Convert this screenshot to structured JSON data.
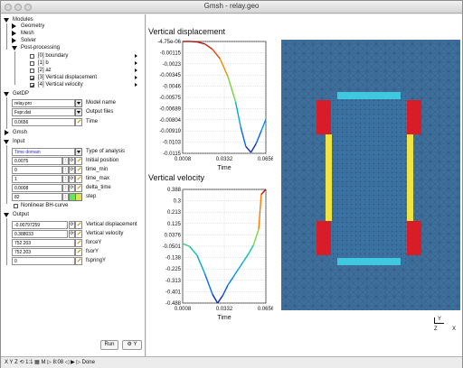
{
  "window": {
    "title": "Gmsh - relay.geo"
  },
  "tree": {
    "modules": "Modules",
    "geometry": "Geometry",
    "mesh": "Mesh",
    "solver": "Solver",
    "post_processing": "Post-processing",
    "views": [
      {
        "label": "[0] boundary",
        "checked": false
      },
      {
        "label": "[1] b",
        "checked": false
      },
      {
        "label": "[2] az",
        "checked": false
      },
      {
        "label": "[3] Vertical displacement",
        "checked": true
      },
      {
        "label": "[4] Vertical velocity",
        "checked": true
      }
    ],
    "getdp": "GetDP",
    "gmsh": "Gmsh",
    "input": "Input",
    "output": "Output",
    "nonlinear": "Nonlinear BH-curve"
  },
  "getdp": {
    "model_name": {
      "value": "relay.pro",
      "label": "Model name"
    },
    "output_files": {
      "value": "Fspr.dat",
      "label": "Output files"
    },
    "time": {
      "value": "0.0656",
      "label": "Time"
    }
  },
  "input": {
    "analysis": {
      "value": "Time domain",
      "label": "Type of analysis"
    },
    "params": [
      {
        "value": "0.0075",
        "label": "Initial position"
      },
      {
        "value": "0",
        "label": "time_min"
      },
      {
        "value": "1",
        "label": "time_max"
      },
      {
        "value": "0.0008",
        "label": "delta_time"
      },
      {
        "value": "82",
        "label": "step"
      }
    ]
  },
  "output": {
    "params": [
      {
        "value": "-0.00797259",
        "label": "Vertical displacement"
      },
      {
        "value": "0.388033",
        "label": "Vertical velocity"
      },
      {
        "value": "752.203",
        "label": "forceY"
      },
      {
        "value": "752.203",
        "label": "fsorY"
      },
      {
        "value": "0",
        "label": "fspringY"
      }
    ]
  },
  "buttons": {
    "run": "Run",
    "settings": "Y"
  },
  "status": {
    "text": "X Y Z ⟲ 1:1 ▦ M ▷ 8:08 ◁ ▶ ▷ Done"
  },
  "axes_indicator": {
    "y": "Y",
    "z": "Z",
    "x": "X"
  },
  "chart_data": [
    {
      "type": "line",
      "title": "Vertical displacement",
      "xlabel": "Time",
      "ylabel": "",
      "x_ticks": [
        "0.0008",
        "0.0332",
        "0.0656"
      ],
      "y_ticks": [
        "-4.75e-06",
        "-0.00115",
        "-0.0023",
        "-0.00345",
        "-0.0046",
        "-0.00575",
        "-0.00689",
        "-0.00804",
        "-0.00919",
        "-0.0103",
        "-0.0115"
      ],
      "xlim": [
        0.0008,
        0.0656
      ],
      "ylim": [
        -0.0115,
        -4.75e-06
      ],
      "x": [
        0.0008,
        0.006,
        0.012,
        0.018,
        0.024,
        0.03,
        0.036,
        0.042,
        0.046,
        0.05,
        0.054,
        0.058,
        0.062,
        0.0656
      ],
      "y": [
        0,
        0,
        -5e-05,
        -0.00025,
        -0.0008,
        -0.0018,
        -0.0036,
        -0.0062,
        -0.0088,
        -0.0108,
        -0.0114,
        -0.0105,
        -0.0092,
        -0.008
      ],
      "grid": true
    },
    {
      "type": "line",
      "title": "Vertical velocity",
      "xlabel": "Time",
      "ylabel": "",
      "x_ticks": [
        "0.0008",
        "0.0332",
        "0.0656"
      ],
      "y_ticks": [
        "0.388",
        "0.3",
        "0.213",
        "0.125",
        "0.0376",
        "-0.0501",
        "-0.138",
        "-0.225",
        "-0.313",
        "-0.401",
        "-0.488"
      ],
      "xlim": [
        0.0008,
        0.0656
      ],
      "ylim": [
        -0.488,
        0.388
      ],
      "x": [
        0.0008,
        0.006,
        0.012,
        0.018,
        0.024,
        0.028,
        0.032,
        0.036,
        0.04,
        0.044,
        0.048,
        0.052,
        0.056,
        0.06,
        0.062,
        0.0656
      ],
      "y": [
        -0.03,
        -0.05,
        -0.12,
        -0.26,
        -0.42,
        -0.488,
        -0.43,
        -0.35,
        -0.29,
        -0.23,
        -0.17,
        -0.11,
        -0.04,
        0.08,
        0.35,
        0.388
      ],
      "grid": true
    }
  ]
}
